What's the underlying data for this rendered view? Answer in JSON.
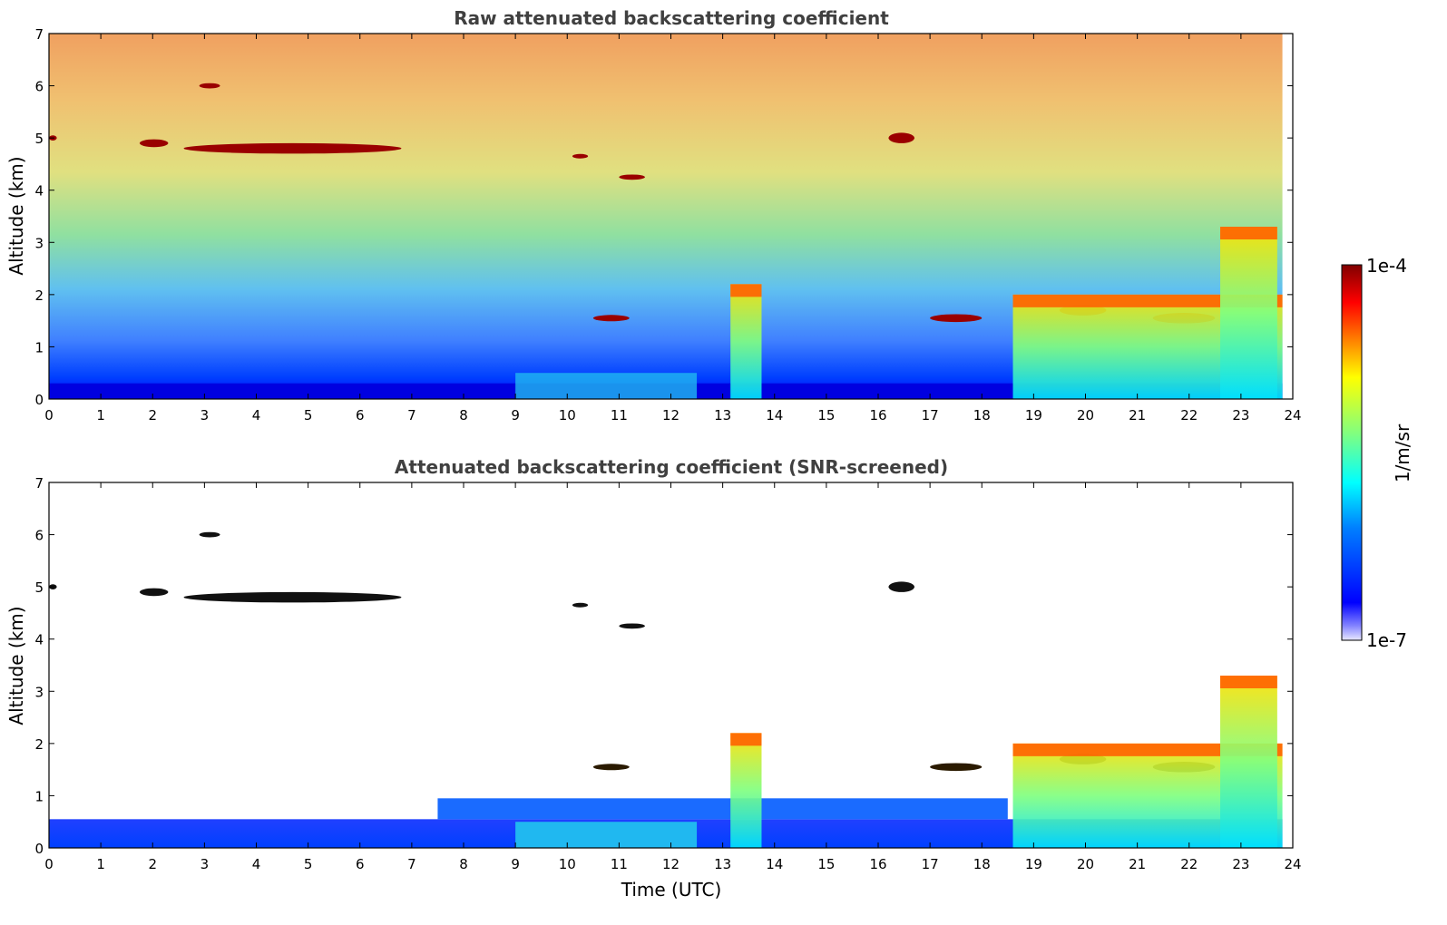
{
  "chart_data": [
    {
      "type": "heatmap",
      "title": "Raw attenuated backscattering coefficient",
      "xlabel": "",
      "ylabel": "Altitude (km)",
      "xlim": [
        0,
        24
      ],
      "ylim": [
        0,
        7
      ],
      "x_ticks": [
        "0",
        "1",
        "2",
        "3",
        "4",
        "5",
        "6",
        "7",
        "8",
        "9",
        "10",
        "11",
        "12",
        "13",
        "14",
        "15",
        "16",
        "17",
        "18",
        "19",
        "20",
        "21",
        "22",
        "23",
        "24"
      ],
      "y_ticks": [
        "0",
        "1",
        "2",
        "3",
        "4",
        "5",
        "6",
        "7"
      ],
      "grid": false,
      "data_end_time": 23.8,
      "features": [
        {
          "kind": "cloud",
          "t_start": 0.0,
          "t_end": 0.15,
          "alt": 5.0,
          "thickness": 0.1
        },
        {
          "kind": "cloud",
          "t_start": 1.75,
          "t_end": 2.3,
          "alt": 4.9,
          "thickness": 0.15
        },
        {
          "kind": "cloud",
          "t_start": 2.6,
          "t_end": 6.8,
          "alt": 4.8,
          "thickness": 0.2
        },
        {
          "kind": "cloud",
          "t_start": 2.9,
          "t_end": 3.3,
          "alt": 6.0,
          "thickness": 0.1
        },
        {
          "kind": "cloud",
          "t_start": 10.1,
          "t_end": 10.4,
          "alt": 4.65,
          "thickness": 0.06
        },
        {
          "kind": "cloud",
          "t_start": 11.0,
          "t_end": 11.5,
          "alt": 4.25,
          "thickness": 0.1
        },
        {
          "kind": "cloud",
          "t_start": 10.5,
          "t_end": 11.2,
          "alt": 1.55,
          "thickness": 0.12
        },
        {
          "kind": "cloud",
          "t_start": 16.2,
          "t_end": 16.7,
          "alt": 5.0,
          "thickness": 0.2
        },
        {
          "kind": "cloud",
          "t_start": 17.0,
          "t_end": 18.0,
          "alt": 1.55,
          "thickness": 0.15
        },
        {
          "kind": "cloud",
          "t_start": 19.5,
          "t_end": 20.4,
          "alt": 1.7,
          "thickness": 0.2
        },
        {
          "kind": "cloud",
          "t_start": 21.3,
          "t_end": 22.5,
          "alt": 1.55,
          "thickness": 0.2
        },
        {
          "kind": "column",
          "t_start": 13.15,
          "t_end": 13.75,
          "alt_top": 2.2
        },
        {
          "kind": "column",
          "t_start": 18.6,
          "t_end": 23.8,
          "alt_top": 2.0
        },
        {
          "kind": "column",
          "t_start": 22.6,
          "t_end": 23.7,
          "alt_top": 3.3
        }
      ]
    },
    {
      "type": "heatmap",
      "title": "Attenuated backscattering coefficient (SNR-screened)",
      "xlabel": "Time (UTC)",
      "ylabel": "Altitude (km)",
      "xlim": [
        0,
        24
      ],
      "ylim": [
        0,
        7
      ],
      "x_ticks": [
        "0",
        "1",
        "2",
        "3",
        "4",
        "5",
        "6",
        "7",
        "8",
        "9",
        "10",
        "11",
        "12",
        "13",
        "14",
        "15",
        "16",
        "17",
        "18",
        "19",
        "20",
        "21",
        "22",
        "23",
        "24"
      ],
      "y_ticks": [
        "0",
        "1",
        "2",
        "3",
        "4",
        "5",
        "6",
        "7"
      ],
      "grid": false,
      "screened_background": "#ffffff"
    }
  ],
  "colorbar": {
    "label": "1/m/sr",
    "max_label": "1e-4",
    "min_label": "1e-7",
    "colors": [
      "#800000",
      "#ff0000",
      "#ff8000",
      "#ffff00",
      "#80ff80",
      "#00ffff",
      "#0080ff",
      "#0000ff",
      "#e0e0ff"
    ]
  }
}
